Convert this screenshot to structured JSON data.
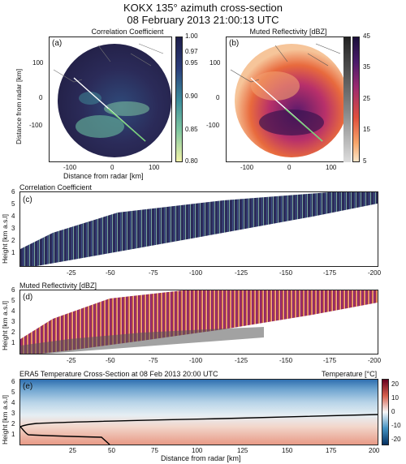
{
  "figure": {
    "title_line1": "KOKX 135° azimuth cross-section",
    "title_line2": "08 February 2013 21:00:13 UTC"
  },
  "panels": {
    "a": {
      "label": "(a)",
      "title": "Correlation Coefficient",
      "ylabel": "Distance from radar [km]",
      "xlabel": "Distance from radar [km]",
      "yticks": [
        "100",
        "0",
        "-100"
      ],
      "xticks": [
        "-100",
        "0",
        "100"
      ],
      "colorbar_ticks": [
        "1.00",
        "0.97",
        "0.95",
        "0.90",
        "0.85",
        "0.80"
      ]
    },
    "b": {
      "label": "(b)",
      "title": "Muted Reflectivity [dBZ]",
      "yticks": [
        "100",
        "0",
        "-100"
      ],
      "xticks": [
        "-100",
        "0",
        "100"
      ],
      "colorbar_ticks": [
        "45",
        "35",
        "25",
        "15",
        "5"
      ]
    },
    "c": {
      "label": "(c)",
      "title": "Correlation Coefficient",
      "ylabel": "Height [km a.s.l]",
      "yticks": [
        "6",
        "5",
        "4",
        "3",
        "2",
        "1"
      ],
      "xticks": [
        "-25",
        "-50",
        "-75",
        "-100",
        "-125",
        "-150",
        "-175",
        "-200"
      ]
    },
    "d": {
      "label": "(d)",
      "title": "Muted Reflectivity [dBZ]",
      "ylabel": "Height [km a.s.l]",
      "yticks": [
        "6",
        "5",
        "4",
        "3",
        "2",
        "1"
      ],
      "xticks": [
        "-25",
        "-50",
        "-75",
        "-100",
        "-125",
        "-150",
        "-175",
        "-200"
      ]
    },
    "e": {
      "label": "(e)",
      "title": "ERA5 Temperature Cross-Section at 08 Feb 2013 20:00 UTC",
      "cbar_title": "Temperature [°C]",
      "ylabel": "Height [km a.s.l]",
      "xlabel": "Distance from radar [km]",
      "yticks": [
        "6",
        "5",
        "4",
        "3",
        "2",
        "1"
      ],
      "xticks": [
        "25",
        "50",
        "75",
        "100",
        "125",
        "150",
        "175",
        "200"
      ],
      "colorbar_ticks": [
        "20",
        "10",
        "0",
        "-10",
        "-20"
      ]
    }
  },
  "colors": {
    "rhohv_dark": "#2b2b59",
    "rhohv_light": "#e8f3a3",
    "refl_light": "#f9dcc0",
    "refl_mid": "#e0503d",
    "refl_dark": "#31114a",
    "beam_line": "#6fd26f",
    "temp_warm": "#b2182b",
    "temp_cold": "#2166ac"
  }
}
